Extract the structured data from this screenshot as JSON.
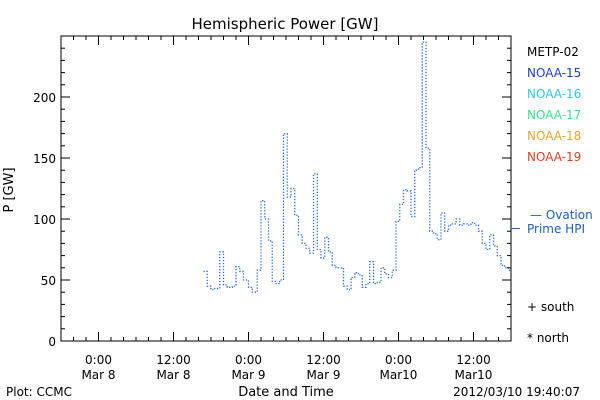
{
  "chart_data": {
    "type": "line",
    "title": "Hemispheric Power [GW]",
    "ylabel": "P [GW]",
    "xlabel": "Date and Time",
    "ylim": [
      0,
      250
    ],
    "y_ticks": [
      0,
      50,
      100,
      150,
      200
    ],
    "x_range_hours": [
      -6,
      66
    ],
    "x_ticks": [
      {
        "hour": 0,
        "time": "0:00",
        "date": "Mar 8"
      },
      {
        "hour": 12,
        "time": "12:00",
        "date": "Mar 8"
      },
      {
        "hour": 24,
        "time": "0:00",
        "date": "Mar 9"
      },
      {
        "hour": 36,
        "time": "12:00",
        "date": "Mar 9"
      },
      {
        "hour": 48,
        "time": "0:00",
        "date": "Mar10"
      },
      {
        "hour": 60,
        "time": "12:00",
        "date": "Mar10"
      }
    ],
    "legend": {
      "placement": "right",
      "entries": [
        {
          "name": "METP-02",
          "color": "#000000"
        },
        {
          "name": "NOAA-15",
          "color": "#1f3fbf"
        },
        {
          "name": "NOAA-16",
          "color": "#2ec8e0"
        },
        {
          "name": "NOAA-17",
          "color": "#3ce08a"
        },
        {
          "name": "NOAA-18",
          "color": "#f0a030"
        },
        {
          "name": "NOAA-19",
          "color": "#e04020"
        }
      ],
      "ovation": {
        "dash": "—",
        "line1": "Ovation",
        "line2": "Prime HPI",
        "color": "#1f5fbf",
        "level": 102
      },
      "markers": [
        {
          "symbol": "+",
          "label": "south"
        },
        {
          "symbol": "*",
          "label": "north"
        }
      ]
    },
    "series": [
      {
        "color": "#2a6bd0",
        "style": "dotted-step",
        "x": [
          16.8,
          17.4,
          18.0,
          18.6,
          19.4,
          20.0,
          20.6,
          21.4,
          22.0,
          22.6,
          23.2,
          24.0,
          24.6,
          25.4,
          26.0,
          26.6,
          27.2,
          27.8,
          28.4,
          29.0,
          29.6,
          30.2,
          30.8,
          31.4,
          32.0,
          32.6,
          33.2,
          33.8,
          34.4,
          35.0,
          35.6,
          36.2,
          36.8,
          37.4,
          38.0,
          38.6,
          39.2,
          39.8,
          40.4,
          41.0,
          41.6,
          42.2,
          42.8,
          43.4,
          44.0,
          44.6,
          45.2,
          45.8,
          46.4,
          47.0,
          47.6,
          48.2,
          48.8,
          49.4,
          50.0,
          50.6,
          51.2,
          51.8,
          52.4,
          53.0,
          53.6,
          54.2,
          54.8,
          55.4,
          56.0,
          56.6,
          57.2,
          57.8,
          58.4,
          59.0,
          59.6,
          60.2,
          60.8,
          61.4,
          62.0,
          62.6,
          63.2,
          63.8,
          64.4,
          65.0,
          65.6,
          66.0
        ],
        "y": [
          57,
          45,
          42,
          43,
          73,
          46,
          44,
          45,
          61,
          57,
          50,
          44,
          40,
          58,
          115,
          100,
          82,
          49,
          47,
          50,
          170,
          118,
          125,
          103,
          87,
          80,
          76,
          72,
          137,
          75,
          68,
          85,
          73,
          62,
          60,
          60,
          45,
          42,
          52,
          56,
          54,
          44,
          47,
          65,
          47,
          48,
          60,
          55,
          52,
          58,
          98,
          112,
          124,
          123,
          102,
          140,
          142,
          245,
          158,
          90,
          88,
          83,
          105,
          90,
          95,
          96,
          100,
          95,
          96,
          95,
          97,
          95,
          90,
          80,
          75,
          87,
          78,
          70,
          62,
          60,
          58,
          58
        ]
      }
    ]
  },
  "footer": {
    "left": "Plot: CCMC",
    "right": "2012/03/10 19:40:07"
  }
}
